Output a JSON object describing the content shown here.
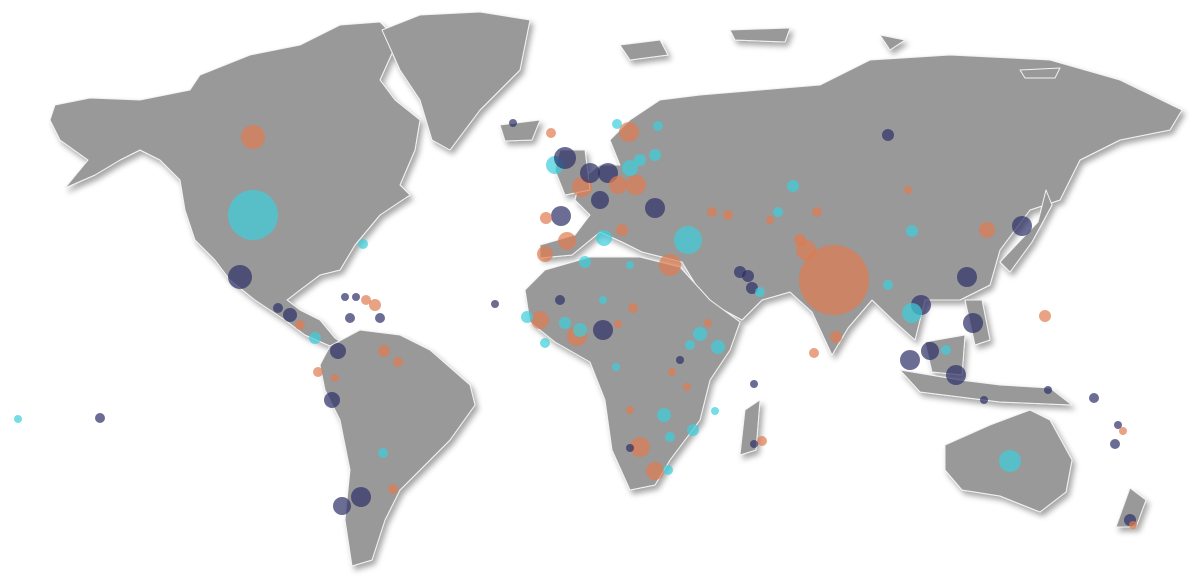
{
  "map": {
    "bubbles": [
      {
        "size": 12,
        "color": "#e07b4f"
      },
      {
        "size": 25,
        "color": "#3ccfdc"
      },
      {
        "size": 12,
        "color": "#2c2f66"
      },
      {
        "size": 5,
        "color": "#3ccfdc"
      },
      {
        "size": 5,
        "color": "#2c2f66"
      },
      {
        "size": 7,
        "color": "#2c2f66"
      },
      {
        "size": 5,
        "color": "#e07b4f"
      },
      {
        "size": 6,
        "color": "#3ccfdc"
      },
      {
        "size": 8,
        "color": "#2c2f66"
      },
      {
        "size": 4,
        "color": "#2c2f66"
      },
      {
        "size": 4,
        "color": "#2c2f66"
      },
      {
        "size": 5,
        "color": "#e07b4f"
      },
      {
        "size": 6,
        "color": "#e07b4f"
      },
      {
        "size": 5,
        "color": "#2c2f66"
      },
      {
        "size": 5,
        "color": "#2c2f66"
      },
      {
        "size": 6,
        "color": "#e07b4f"
      },
      {
        "size": 5,
        "color": "#e07b4f"
      },
      {
        "size": 8,
        "color": "#2c2f66"
      },
      {
        "size": 5,
        "color": "#e07b4f"
      },
      {
        "size": 4,
        "color": "#e07b4f"
      },
      {
        "size": 5,
        "color": "#3ccfdc"
      },
      {
        "size": 5,
        "color": "#e07b4f"
      },
      {
        "size": 9,
        "color": "#2c2f66"
      },
      {
        "size": 10,
        "color": "#2c2f66"
      },
      {
        "size": 4,
        "color": "#3ccfdc"
      },
      {
        "size": 5,
        "color": "#2c2f66"
      },
      {
        "size": 4,
        "color": "#2c2f66"
      },
      {
        "size": 4,
        "color": "#2c2f66"
      },
      {
        "size": 5,
        "color": "#e07b4f"
      },
      {
        "size": 9,
        "color": "#3ccfdc"
      },
      {
        "size": 11,
        "color": "#2c2f66"
      },
      {
        "size": 10,
        "color": "#e07b4f"
      },
      {
        "size": 10,
        "color": "#2c2f66"
      },
      {
        "size": 10,
        "color": "#2c2f66"
      },
      {
        "size": 9,
        "color": "#2c2f66"
      },
      {
        "size": 9,
        "color": "#e07b4f"
      },
      {
        "size": 10,
        "color": "#e07b4f"
      },
      {
        "size": 8,
        "color": "#3ccfdc"
      },
      {
        "size": 6,
        "color": "#3ccfdc"
      },
      {
        "size": 6,
        "color": "#3ccfdc"
      },
      {
        "size": 10,
        "color": "#2c2f66"
      },
      {
        "size": 10,
        "color": "#e07b4f"
      },
      {
        "size": 5,
        "color": "#3ccfdc"
      },
      {
        "size": 5,
        "color": "#3ccfdc"
      },
      {
        "size": 10,
        "color": "#2c2f66"
      },
      {
        "size": 6,
        "color": "#e07b4f"
      },
      {
        "size": 9,
        "color": "#e07b4f"
      },
      {
        "size": 8,
        "color": "#e07b4f"
      },
      {
        "size": 8,
        "color": "#3ccfdc"
      },
      {
        "size": 6,
        "color": "#e07b4f"
      },
      {
        "size": 14,
        "color": "#3ccfdc"
      },
      {
        "size": 11,
        "color": "#e07b4f"
      },
      {
        "size": 4,
        "color": "#3ccfdc"
      },
      {
        "size": 6,
        "color": "#3ccfdc"
      },
      {
        "size": 6,
        "color": "#2c2f66"
      },
      {
        "size": 6,
        "color": "#2c2f66"
      },
      {
        "size": 6,
        "color": "#2c2f66"
      },
      {
        "size": 5,
        "color": "#3ccfdc"
      },
      {
        "size": 6,
        "color": "#3ccfdc"
      },
      {
        "size": 5,
        "color": "#e07b4f"
      },
      {
        "size": 5,
        "color": "#e07b4f"
      },
      {
        "size": 5,
        "color": "#3ccfdc"
      },
      {
        "size": 5,
        "color": "#e07b4f"
      },
      {
        "size": 4,
        "color": "#e07b4f"
      },
      {
        "size": 6,
        "color": "#e07b4f"
      },
      {
        "size": 10,
        "color": "#e07b4f"
      },
      {
        "size": 35,
        "color": "#e07b4f"
      },
      {
        "size": 6,
        "color": "#2c2f66"
      },
      {
        "size": 4,
        "color": "#e07b4f"
      },
      {
        "size": 6,
        "color": "#3ccfdc"
      },
      {
        "size": 8,
        "color": "#e07b4f"
      },
      {
        "size": 10,
        "color": "#2c2f66"
      },
      {
        "size": 10,
        "color": "#2c2f66"
      },
      {
        "size": 10,
        "color": "#2c2f66"
      },
      {
        "size": 10,
        "color": "#2c2f66"
      },
      {
        "size": 10,
        "color": "#3ccfdc"
      },
      {
        "size": 5,
        "color": "#3ccfdc"
      },
      {
        "size": 9,
        "color": "#2c2f66"
      },
      {
        "size": 10,
        "color": "#2c2f66"
      },
      {
        "size": 10,
        "color": "#2c2f66"
      },
      {
        "size": 5,
        "color": "#3ccfdc"
      },
      {
        "size": 6,
        "color": "#e07b4f"
      },
      {
        "size": 5,
        "color": "#e07b4f"
      },
      {
        "size": 4,
        "color": "#2c2f66"
      },
      {
        "size": 6,
        "color": "#e07b4f"
      },
      {
        "size": 4,
        "color": "#2c2f66"
      },
      {
        "size": 5,
        "color": "#2c2f66"
      },
      {
        "size": 4,
        "color": "#2c2f66"
      },
      {
        "size": 5,
        "color": "#2c2f66"
      },
      {
        "size": 4,
        "color": "#e07b4f"
      },
      {
        "size": 11,
        "color": "#3ccfdc"
      },
      {
        "size": 6,
        "color": "#2c2f66"
      },
      {
        "size": 4,
        "color": "#e07b4f"
      },
      {
        "size": 9,
        "color": "#e07b4f"
      },
      {
        "size": 6,
        "color": "#3ccfdc"
      },
      {
        "size": 5,
        "color": "#2c2f66"
      },
      {
        "size": 6,
        "color": "#3ccfdc"
      },
      {
        "size": 10,
        "color": "#e07b4f"
      },
      {
        "size": 10,
        "color": "#2c2f66"
      },
      {
        "size": 7,
        "color": "#3ccfdc"
      },
      {
        "size": 5,
        "color": "#3ccfdc"
      },
      {
        "size": 4,
        "color": "#3ccfdc"
      },
      {
        "size": 5,
        "color": "#e07b4f"
      },
      {
        "size": 4,
        "color": "#2c2f66"
      },
      {
        "size": 4,
        "color": "#e07b4f"
      },
      {
        "size": 5,
        "color": "#3ccfdc"
      },
      {
        "size": 7,
        "color": "#3ccfdc"
      },
      {
        "size": 7,
        "color": "#3ccfdc"
      },
      {
        "size": 4,
        "color": "#e07b4f"
      },
      {
        "size": 4,
        "color": "#e07b4f"
      },
      {
        "size": 4,
        "color": "#e07b4f"
      },
      {
        "size": 7,
        "color": "#3ccfdc"
      },
      {
        "size": 10,
        "color": "#e07b4f"
      },
      {
        "size": 4,
        "color": "#2c2f66"
      },
      {
        "size": 5,
        "color": "#3ccfdc"
      },
      {
        "size": 6,
        "color": "#3ccfdc"
      },
      {
        "size": 4,
        "color": "#3ccfdc"
      },
      {
        "size": 9,
        "color": "#e07b4f"
      },
      {
        "size": 5,
        "color": "#3ccfdc"
      },
      {
        "size": 4,
        "color": "#2c2f66"
      },
      {
        "size": 5,
        "color": "#e07b4f"
      },
      {
        "size": 4,
        "color": "#2c2f66"
      },
      {
        "size": 4,
        "color": "#3ccfdc"
      },
      {
        "size": 4,
        "color": "#e07b4f"
      }
    ]
  }
}
